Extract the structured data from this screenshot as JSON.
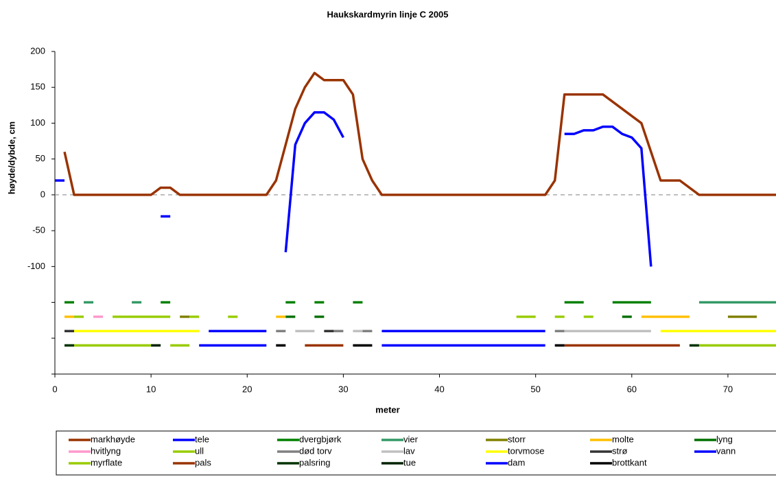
{
  "chart_data": {
    "type": "line",
    "title": "Haukskardmyrin linje C 2005",
    "x_label": "meter",
    "y_label": "høyde/dybde, cm",
    "xlim": [
      0,
      75
    ],
    "xticks": [
      0,
      10,
      20,
      30,
      40,
      50,
      60,
      70
    ],
    "ylim": [
      -250,
      200
    ],
    "yticks": [
      200,
      150,
      100,
      50,
      0,
      -50,
      -100,
      {
        "value": -150,
        "label": null
      },
      {
        "value": -200,
        "label": null
      },
      {
        "value": -250,
        "label": null
      }
    ],
    "baseline": 0,
    "grid": false,
    "legend": "bottom",
    "series": [
      {
        "name": "markhøyde",
        "color": "#993300",
        "x": [
          1,
          2,
          10,
          11,
          12,
          13,
          22,
          23,
          24,
          25,
          26,
          27,
          28,
          29,
          30,
          31,
          32,
          33,
          34,
          51,
          52,
          53,
          57,
          61,
          63,
          65,
          67,
          75
        ],
        "values": [
          60,
          0,
          0,
          10,
          10,
          0,
          0,
          20,
          70,
          120,
          150,
          170,
          160,
          160,
          160,
          140,
          50,
          20,
          0,
          0,
          20,
          140,
          140,
          100,
          20,
          20,
          0,
          0
        ]
      },
      {
        "name": "tele",
        "color": "#0000ff",
        "x": [
          0,
          1,
          2,
          11,
          12,
          13,
          24,
          25,
          26,
          27,
          28,
          29,
          30,
          31,
          53,
          54,
          55,
          56,
          57,
          58,
          59,
          60,
          61,
          62
        ],
        "values": [
          20,
          20,
          null,
          -30,
          -30,
          null,
          -80,
          70,
          100,
          115,
          115,
          105,
          80,
          null,
          85,
          85,
          90,
          90,
          95,
          95,
          85,
          80,
          65,
          -100
        ]
      },
      {
        "name": "dvergbjørk",
        "color": "#008000",
        "x": [
          1,
          2,
          3,
          11,
          12,
          13,
          24,
          25,
          26,
          27,
          28,
          29,
          31,
          32,
          33,
          53,
          55,
          56,
          58,
          62
        ],
        "values": [
          -150,
          -150,
          null,
          -150,
          -150,
          null,
          -150,
          -150,
          null,
          -150,
          -150,
          null,
          -150,
          -150,
          null,
          -150,
          -150,
          null,
          -150,
          -150
        ]
      },
      {
        "name": "vier",
        "color": "#339966",
        "x": [
          3,
          4,
          5,
          8,
          9,
          10,
          67,
          75
        ],
        "values": [
          -150,
          -150,
          null,
          -150,
          -150,
          null,
          -150,
          -150
        ]
      },
      {
        "name": "storr",
        "color": "#808000",
        "x": [
          13,
          14,
          15,
          70,
          73
        ],
        "values": [
          -170,
          -170,
          null,
          -170,
          -170
        ]
      },
      {
        "name": "molte",
        "color": "#ffc000",
        "x": [
          1,
          2,
          3,
          23,
          24,
          25,
          61,
          66
        ],
        "values": [
          -170,
          -170,
          null,
          -170,
          -170,
          null,
          -170,
          -170
        ]
      },
      {
        "name": "lyng",
        "color": "#007000",
        "x": [
          24,
          25,
          26,
          27,
          28,
          29,
          59,
          60
        ],
        "values": [
          -170,
          -170,
          null,
          -170,
          -170,
          null,
          -170,
          -170
        ]
      },
      {
        "name": "hvitlyng",
        "color": "#ff99cc",
        "x": [
          4,
          5
        ],
        "values": [
          -170,
          -170
        ]
      },
      {
        "name": "ull",
        "color": "#99cc00",
        "x": [
          2,
          3,
          4,
          6,
          12,
          13,
          14,
          15,
          16,
          18,
          19,
          20,
          48,
          50,
          51,
          52,
          53,
          54,
          55,
          56
        ],
        "values": [
          -170,
          -170,
          null,
          -170,
          -170,
          null,
          -170,
          -170,
          null,
          -170,
          -170,
          null,
          -170,
          -170,
          null,
          -170,
          -170,
          null,
          -170,
          -170
        ]
      },
      {
        "name": "død torv",
        "color": "#808080",
        "x": [
          23,
          24,
          25,
          29,
          30,
          31,
          32,
          33,
          34,
          52,
          53
        ],
        "values": [
          -190,
          -190,
          null,
          -190,
          -190,
          null,
          -190,
          -190,
          null,
          -190,
          -190
        ]
      },
      {
        "name": "lav",
        "color": "#c0c0c0",
        "x": [
          25,
          27,
          28,
          31,
          32,
          33,
          53,
          62
        ],
        "values": [
          -190,
          -190,
          null,
          -190,
          -190,
          null,
          -190,
          -190
        ]
      },
      {
        "name": "torvmose",
        "color": "#ffff00",
        "x": [
          2,
          15,
          16,
          63,
          75
        ],
        "values": [
          -190,
          -190,
          null,
          -190,
          -190
        ]
      },
      {
        "name": "strø",
        "color": "#333333",
        "x": [
          1,
          2,
          3,
          28,
          29
        ],
        "values": [
          -190,
          -190,
          null,
          -190,
          -190
        ]
      },
      {
        "name": "vann",
        "color": "#0000ff",
        "x": [
          16,
          22,
          23,
          34,
          51
        ],
        "values": [
          -190,
          -190,
          null,
          -190,
          -190
        ]
      },
      {
        "name": "myrflate",
        "color": "#99cc00",
        "x": [
          2,
          10,
          11,
          12,
          14,
          15,
          67,
          75
        ],
        "values": [
          -210,
          -210,
          null,
          -210,
          -210,
          null,
          -210,
          -210
        ]
      },
      {
        "name": "pals",
        "color": "#993300",
        "x": [
          26,
          30,
          31,
          53,
          65
        ],
        "values": [
          -210,
          -210,
          null,
          -210,
          -210
        ]
      },
      {
        "name": "palsring",
        "color": "#003300",
        "x": [
          1,
          2,
          3,
          66,
          67
        ],
        "values": [
          -210,
          -210,
          null,
          -210,
          -210
        ]
      },
      {
        "name": "tue",
        "color": "#002200",
        "x": [
          10,
          11
        ],
        "values": [
          -210,
          -210
        ]
      },
      {
        "name": "dam",
        "color": "#0000ff",
        "x": [
          15,
          22,
          23,
          34,
          51
        ],
        "values": [
          -210,
          -210,
          null,
          -210,
          -210
        ]
      },
      {
        "name": "brottkant",
        "color": "#000000",
        "x": [
          23,
          24,
          25,
          31,
          33,
          34,
          52,
          53
        ],
        "values": [
          -210,
          -210,
          null,
          -210,
          -210,
          null,
          -210,
          -210
        ]
      }
    ]
  }
}
